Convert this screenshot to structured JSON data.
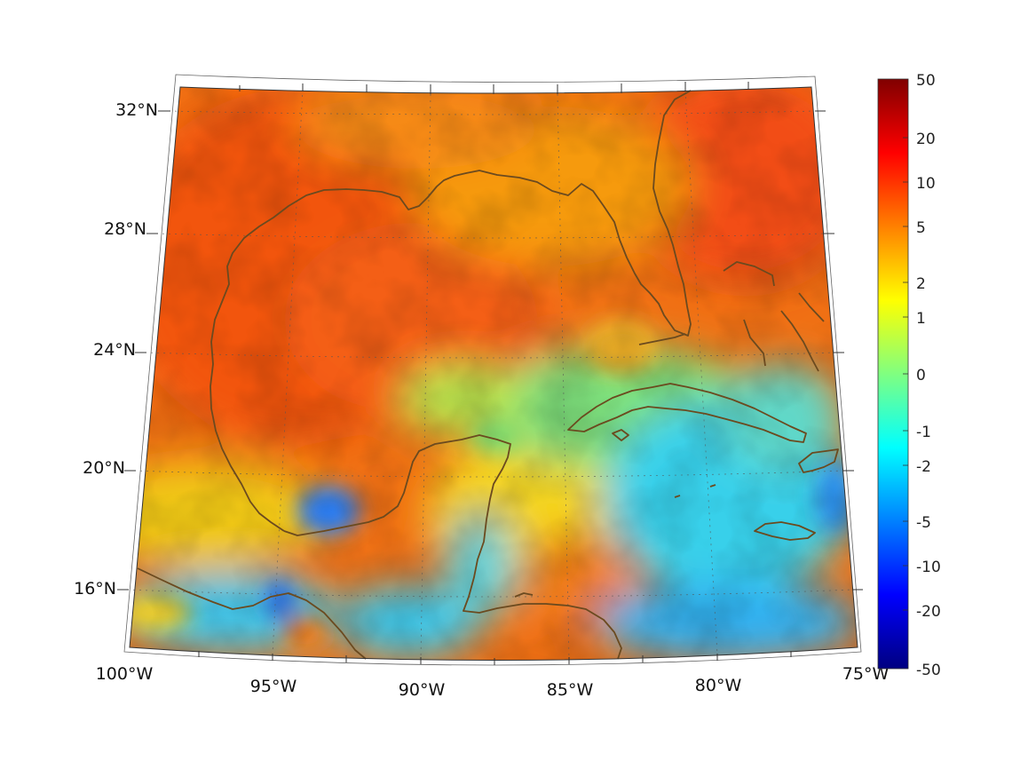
{
  "map": {
    "projection": "conic",
    "region": "Gulf of Mexico and Caribbean",
    "lon_range": [
      -100,
      -75
    ],
    "lat_range": [
      14,
      33
    ],
    "field": "anomaly (unlabeled)",
    "colormap": "jet",
    "grid": true,
    "coastline_color": "#6b4a1f"
  },
  "axes": {
    "lon_ticks": [
      "100°W",
      "95°W",
      "90°W",
      "85°W",
      "80°W",
      "75°W"
    ],
    "lat_ticks": [
      "32°N",
      "28°N",
      "24°N",
      "20°N",
      "16°N"
    ]
  },
  "colorbar": {
    "ticks": [
      "50",
      "20",
      "10",
      "5",
      "2",
      "1",
      "0",
      "-1",
      "-2",
      "-5",
      "-10",
      "-20",
      "-50"
    ],
    "colors": [
      "#800000",
      "#ff0000",
      "#ff8000",
      "#ffff00",
      "#80ff80",
      "#00ffff",
      "#0080ff",
      "#0000ff",
      "#000080"
    ]
  }
}
